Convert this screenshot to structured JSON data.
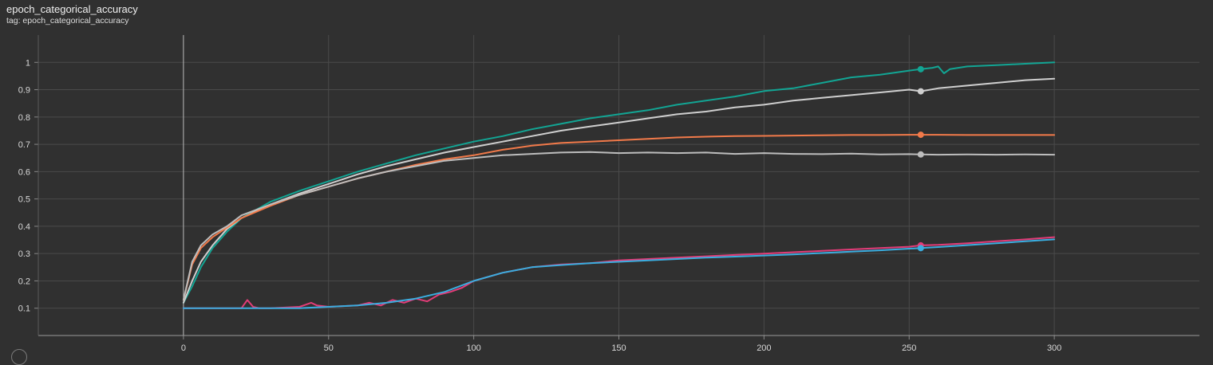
{
  "card": {
    "title": "epoch_categorical_accuracy",
    "tag": "tag: epoch_categorical_accuracy"
  },
  "chart_data": {
    "type": "line",
    "title": "epoch_categorical_accuracy",
    "xlabel": "",
    "ylabel": "",
    "xlim": [
      -50,
      350
    ],
    "ylim": [
      0.0,
      1.1
    ],
    "grid": true,
    "x_ticks": [
      0,
      50,
      100,
      150,
      200,
      250,
      300
    ],
    "y_ticks": [
      0.1,
      0.2,
      0.3,
      0.4,
      0.5,
      0.6,
      0.7,
      0.8,
      0.9,
      1
    ],
    "marker_step": 254,
    "colors": {
      "background": "#303030",
      "grid": "#4a4a4a",
      "teal": "#12a594",
      "light_gray": "#cfcfcf",
      "orange": "#f27a4a",
      "gray": "#bdbdbd",
      "pink": "#e33c78",
      "blue": "#3aaee0"
    },
    "series": [
      {
        "color": "#12a594",
        "x": [
          0,
          3,
          6,
          10,
          15,
          20,
          30,
          40,
          50,
          60,
          70,
          80,
          90,
          100,
          110,
          120,
          130,
          140,
          150,
          160,
          170,
          180,
          190,
          200,
          210,
          220,
          230,
          240,
          250,
          254,
          258,
          260,
          262,
          264,
          270,
          280,
          290,
          300
        ],
        "y": [
          0.12,
          0.18,
          0.25,
          0.32,
          0.38,
          0.43,
          0.49,
          0.53,
          0.565,
          0.6,
          0.63,
          0.66,
          0.685,
          0.71,
          0.73,
          0.755,
          0.775,
          0.795,
          0.81,
          0.825,
          0.845,
          0.86,
          0.875,
          0.895,
          0.905,
          0.925,
          0.945,
          0.955,
          0.97,
          0.975,
          0.98,
          0.985,
          0.96,
          0.975,
          0.985,
          0.99,
          0.995,
          1.0
        ]
      },
      {
        "color": "#cfcfcf",
        "x": [
          0,
          3,
          6,
          10,
          15,
          20,
          30,
          40,
          50,
          60,
          70,
          80,
          90,
          100,
          110,
          120,
          130,
          140,
          150,
          160,
          170,
          180,
          190,
          200,
          210,
          220,
          230,
          240,
          250,
          254,
          260,
          270,
          280,
          290,
          300
        ],
        "y": [
          0.12,
          0.2,
          0.27,
          0.33,
          0.39,
          0.43,
          0.48,
          0.52,
          0.555,
          0.59,
          0.62,
          0.645,
          0.67,
          0.69,
          0.71,
          0.73,
          0.75,
          0.765,
          0.78,
          0.795,
          0.81,
          0.82,
          0.835,
          0.845,
          0.86,
          0.87,
          0.88,
          0.89,
          0.9,
          0.894,
          0.905,
          0.915,
          0.925,
          0.935,
          0.94
        ]
      },
      {
        "color": "#f27a4a",
        "x": [
          0,
          3,
          6,
          10,
          15,
          20,
          30,
          40,
          50,
          60,
          70,
          80,
          90,
          100,
          110,
          120,
          130,
          140,
          150,
          160,
          170,
          180,
          190,
          200,
          210,
          220,
          230,
          240,
          250,
          254,
          260,
          270,
          280,
          290,
          300
        ],
        "y": [
          0.13,
          0.26,
          0.32,
          0.36,
          0.395,
          0.43,
          0.475,
          0.515,
          0.545,
          0.575,
          0.6,
          0.625,
          0.645,
          0.66,
          0.68,
          0.695,
          0.705,
          0.71,
          0.715,
          0.72,
          0.725,
          0.728,
          0.73,
          0.731,
          0.732,
          0.733,
          0.734,
          0.734,
          0.735,
          0.735,
          0.735,
          0.734,
          0.734,
          0.734,
          0.734
        ]
      },
      {
        "color": "#bdbdbd",
        "x": [
          0,
          3,
          6,
          10,
          15,
          20,
          30,
          40,
          50,
          60,
          70,
          80,
          90,
          100,
          110,
          120,
          130,
          140,
          150,
          160,
          170,
          180,
          190,
          200,
          210,
          220,
          230,
          240,
          250,
          254,
          260,
          270,
          280,
          290,
          300
        ],
        "y": [
          0.13,
          0.27,
          0.33,
          0.37,
          0.4,
          0.44,
          0.48,
          0.515,
          0.545,
          0.575,
          0.6,
          0.62,
          0.64,
          0.65,
          0.66,
          0.665,
          0.67,
          0.672,
          0.668,
          0.67,
          0.668,
          0.67,
          0.665,
          0.668,
          0.665,
          0.664,
          0.666,
          0.663,
          0.664,
          0.663,
          0.662,
          0.663,
          0.662,
          0.663,
          0.662
        ]
      },
      {
        "color": "#e33c78",
        "x": [
          0,
          10,
          20,
          22,
          24,
          26,
          30,
          40,
          44,
          46,
          50,
          60,
          64,
          68,
          72,
          76,
          80,
          84,
          88,
          92,
          96,
          100,
          110,
          120,
          130,
          140,
          150,
          160,
          170,
          180,
          190,
          200,
          210,
          220,
          230,
          240,
          250,
          254,
          260,
          270,
          280,
          290,
          300
        ],
        "y": [
          0.1,
          0.1,
          0.1,
          0.13,
          0.105,
          0.1,
          0.1,
          0.105,
          0.12,
          0.11,
          0.105,
          0.11,
          0.12,
          0.11,
          0.13,
          0.12,
          0.135,
          0.125,
          0.15,
          0.16,
          0.175,
          0.2,
          0.23,
          0.25,
          0.26,
          0.265,
          0.275,
          0.28,
          0.285,
          0.29,
          0.295,
          0.3,
          0.305,
          0.31,
          0.315,
          0.32,
          0.325,
          0.33,
          0.332,
          0.338,
          0.345,
          0.352,
          0.36
        ]
      },
      {
        "color": "#3aaee0",
        "x": [
          0,
          10,
          20,
          30,
          40,
          50,
          60,
          70,
          80,
          90,
          100,
          110,
          120,
          130,
          140,
          150,
          160,
          170,
          180,
          190,
          200,
          210,
          220,
          230,
          240,
          250,
          254,
          260,
          270,
          280,
          290,
          300
        ],
        "y": [
          0.1,
          0.1,
          0.1,
          0.1,
          0.1,
          0.105,
          0.11,
          0.12,
          0.135,
          0.16,
          0.2,
          0.23,
          0.25,
          0.258,
          0.265,
          0.27,
          0.275,
          0.28,
          0.285,
          0.289,
          0.293,
          0.297,
          0.302,
          0.307,
          0.312,
          0.318,
          0.32,
          0.324,
          0.331,
          0.338,
          0.345,
          0.352
        ]
      }
    ]
  }
}
